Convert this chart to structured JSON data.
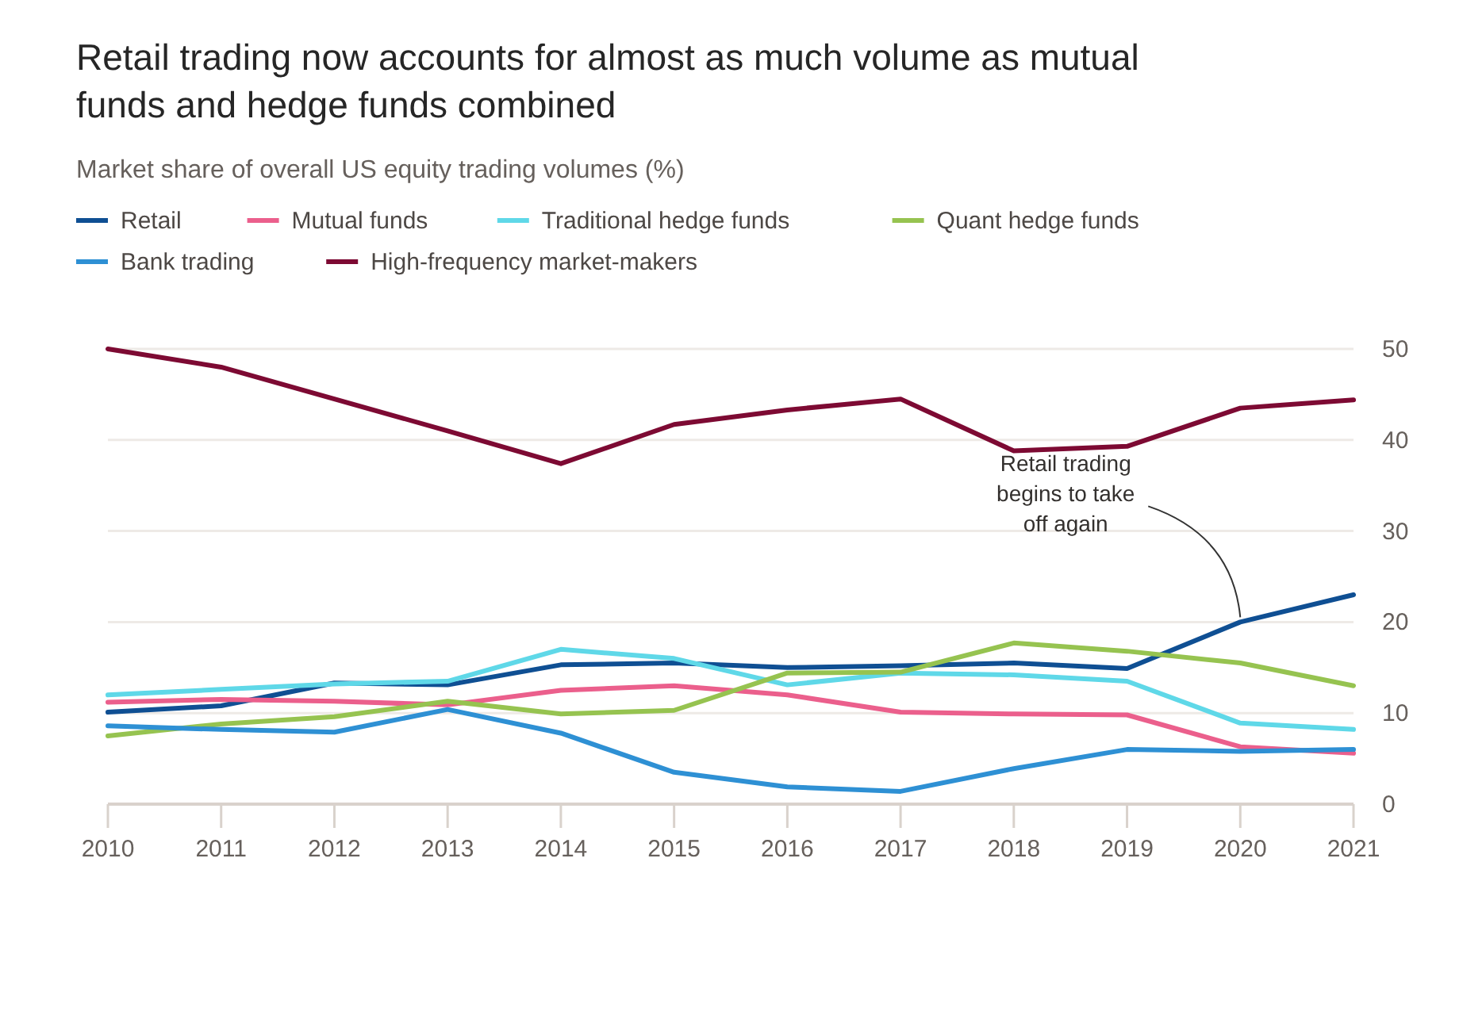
{
  "chart_data": {
    "type": "line",
    "title": "Retail trading now accounts for almost as much volume as mutual funds and hedge funds combined",
    "subtitle": "Market share of overall US equity trading volumes (%)",
    "x": [
      2010,
      2011,
      2012,
      2013,
      2014,
      2015,
      2016,
      2017,
      2018,
      2019,
      2020,
      2021
    ],
    "xlim": [
      2010,
      2021
    ],
    "xticks": [
      2010,
      2011,
      2012,
      2013,
      2014,
      2015,
      2016,
      2017,
      2018,
      2019,
      2020,
      2021
    ],
    "ylim": [
      0,
      50
    ],
    "yticks": [
      0,
      10,
      20,
      30,
      40,
      50
    ],
    "grid": "y",
    "legend": "top left",
    "line_style": "solid",
    "marker": "none",
    "series": [
      {
        "name": "Retail",
        "color": "#0f4f93",
        "values": [
          10.1,
          10.8,
          13.3,
          13.1,
          15.3,
          15.5,
          15.0,
          15.2,
          15.5,
          14.9,
          20.0,
          23.0
        ]
      },
      {
        "name": "Mutual funds",
        "color": "#eb5f8c",
        "values": [
          11.2,
          11.5,
          11.3,
          10.9,
          12.5,
          13.0,
          12.0,
          10.1,
          9.9,
          9.8,
          6.3,
          5.6
        ]
      },
      {
        "name": "Traditional hedge funds",
        "color": "#5fd8e8",
        "values": [
          12.0,
          12.6,
          13.2,
          13.5,
          17.0,
          16.0,
          13.1,
          14.4,
          14.2,
          13.5,
          8.9,
          8.2
        ]
      },
      {
        "name": "Quant hedge funds",
        "color": "#96c350",
        "values": [
          7.5,
          8.8,
          9.6,
          11.3,
          9.9,
          10.3,
          14.4,
          14.5,
          17.7,
          16.8,
          15.5,
          13.0
        ]
      },
      {
        "name": "Bank trading",
        "color": "#2e90d4",
        "values": [
          8.6,
          8.2,
          7.9,
          10.4,
          7.8,
          3.5,
          1.9,
          1.4,
          3.9,
          6.0,
          5.8,
          6.0
        ]
      },
      {
        "name": "High-frequency market-makers",
        "color": "#7d0a33",
        "values": [
          50.0,
          48.0,
          44.5,
          41.0,
          37.4,
          41.7,
          43.3,
          44.5,
          38.8,
          39.3,
          43.5,
          44.4
        ]
      }
    ],
    "annotations": [
      {
        "text": "Retail trading begins to take off again",
        "x": 2020,
        "y": 20
      }
    ]
  }
}
